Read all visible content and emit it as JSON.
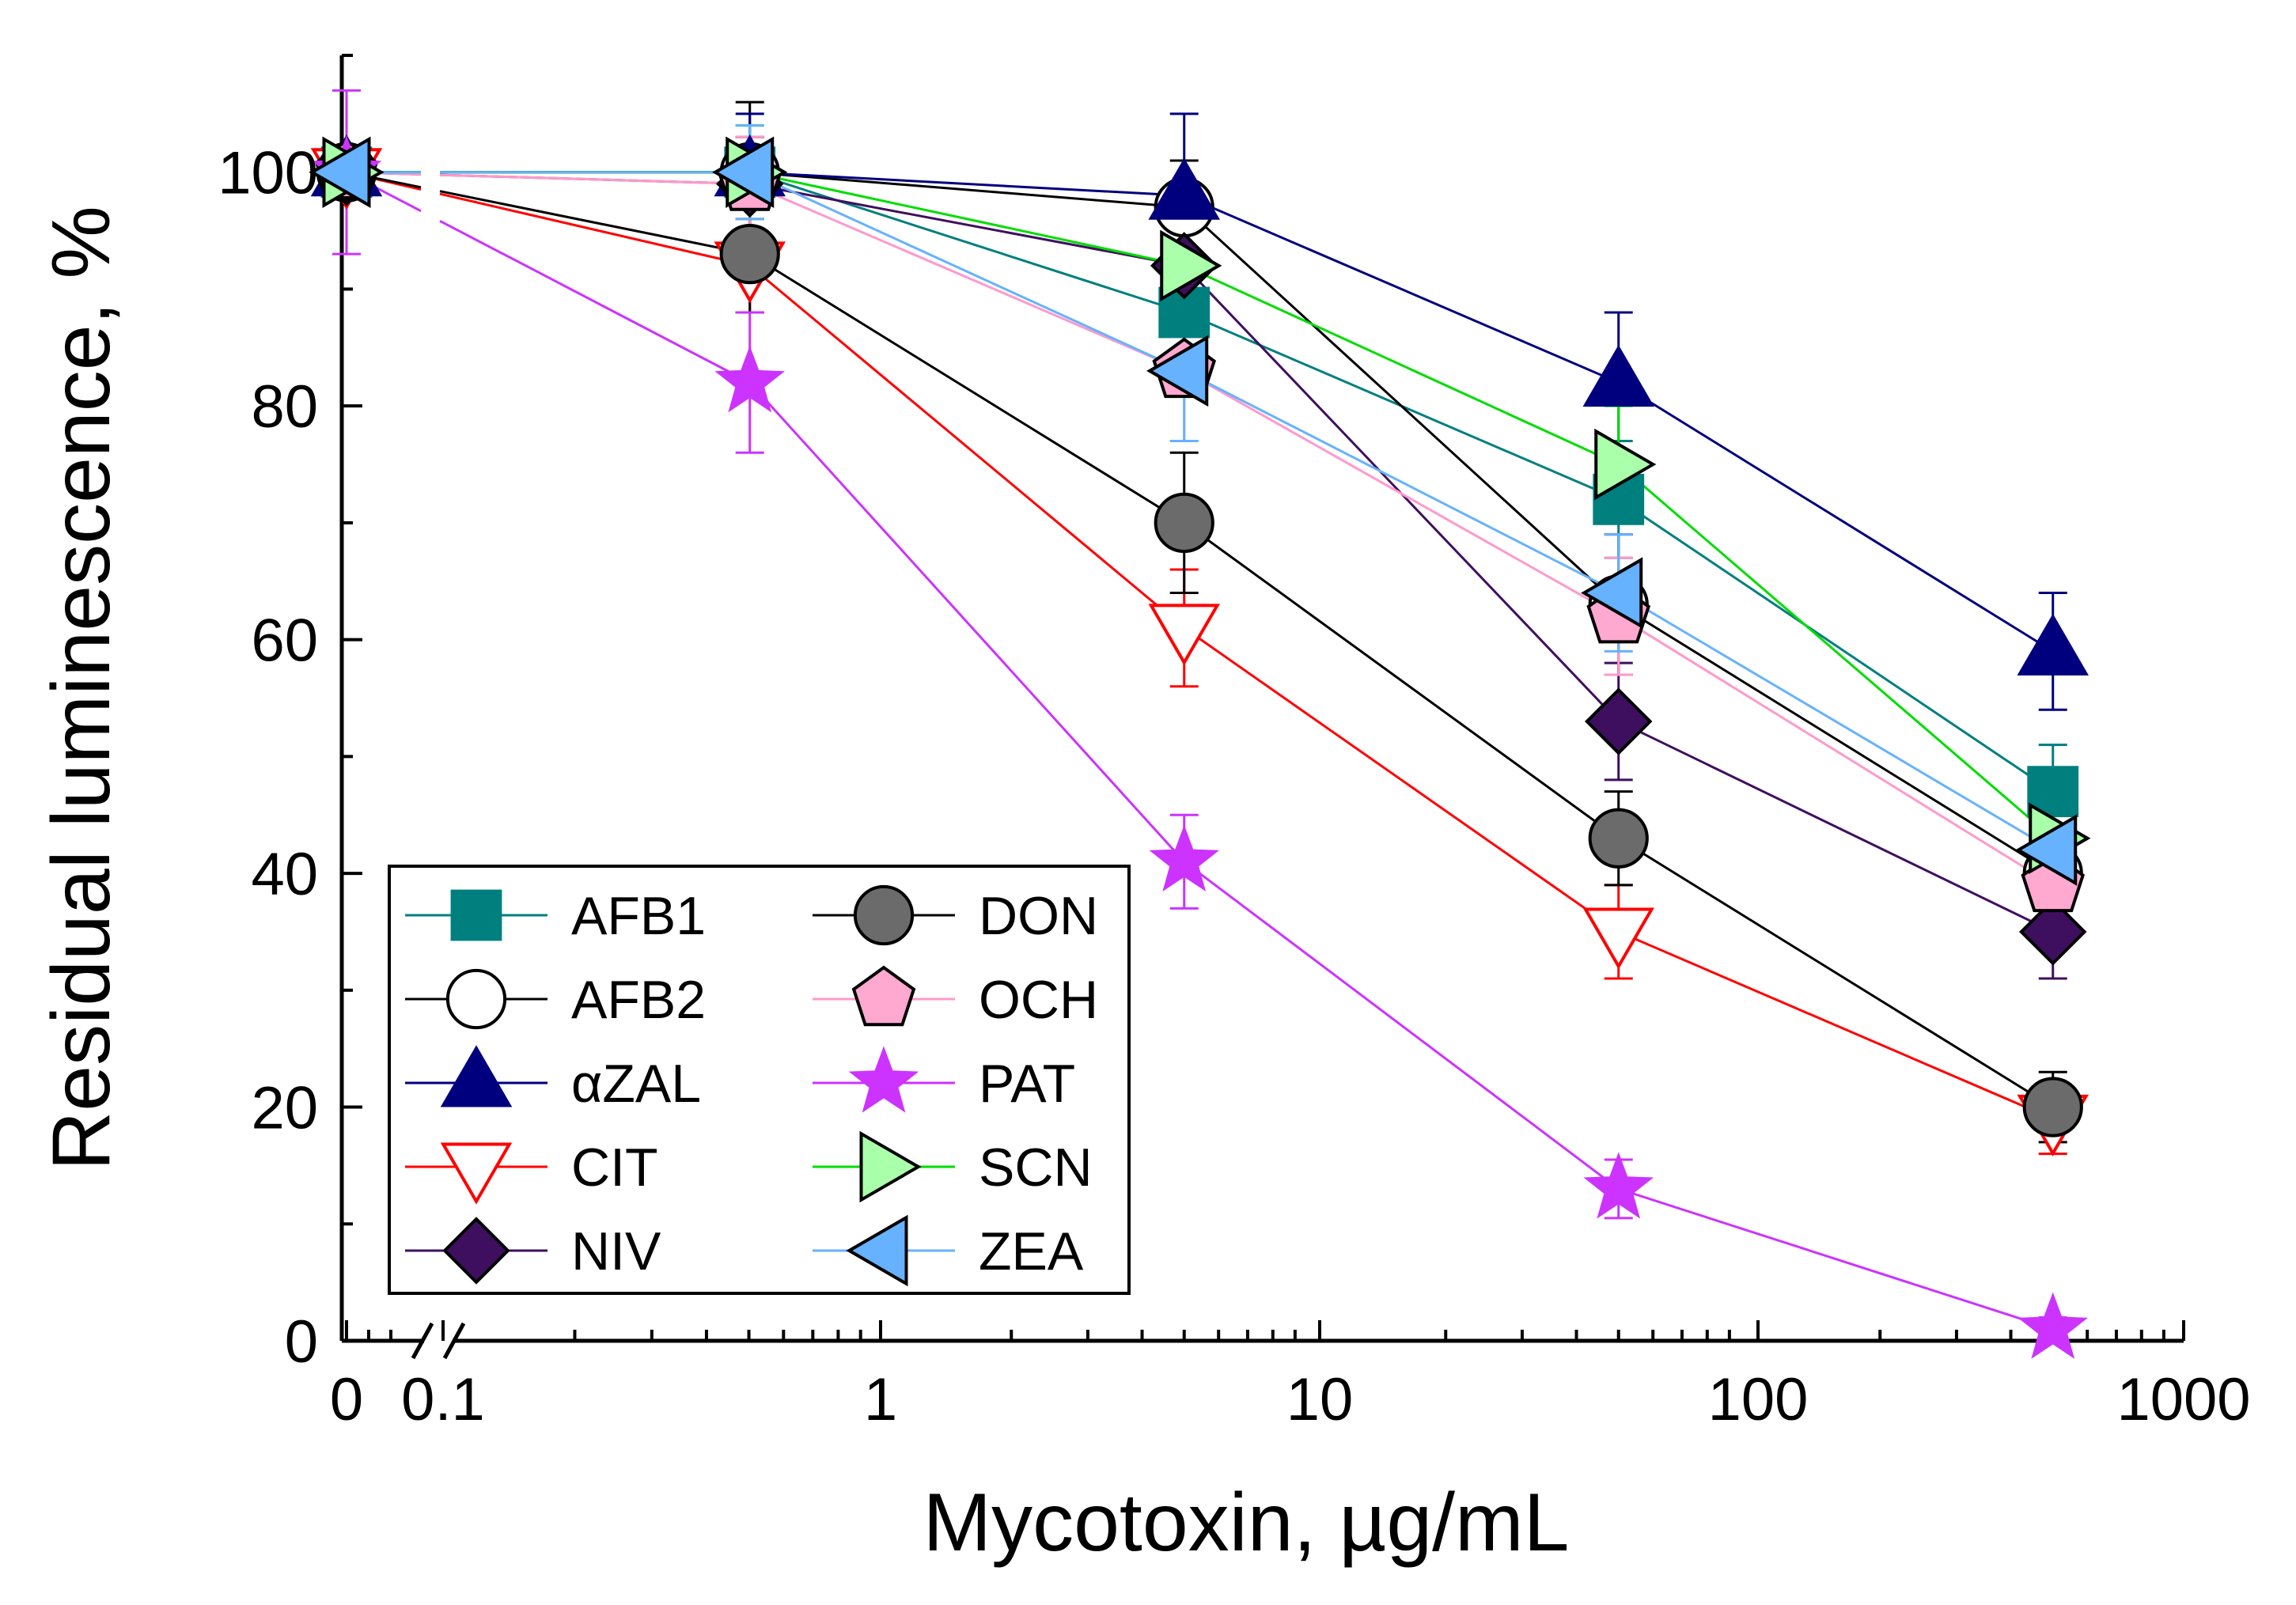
{
  "chart_data": {
    "type": "line",
    "xlabel": "Mycotoxin, µg/mL",
    "ylabel": "Residual luminescence, %",
    "x_scale": "log with axis break",
    "x_ticks": [
      "0",
      "0.1",
      "1",
      "10",
      "100",
      "1000"
    ],
    "y_ticks": [
      "0",
      "20",
      "40",
      "60",
      "80",
      "100"
    ],
    "ylim": [
      0,
      110
    ],
    "xlim": [
      0.1,
      1000
    ],
    "legend_position": "bottom-left",
    "x": [
      0,
      0.5,
      5,
      50,
      500
    ],
    "series": [
      {
        "name": "AFB1",
        "color": "#007F7F",
        "marker": "square",
        "fill": "#007F7F",
        "values": [
          100,
          100,
          88,
          72,
          47
        ],
        "errors": [
          0,
          3,
          5,
          5,
          4
        ]
      },
      {
        "name": "AFB2",
        "color": "#000000",
        "marker": "circle",
        "fill": "#FFFFFF",
        "values": [
          100,
          100,
          97,
          63,
          40
        ],
        "errors": [
          0,
          6,
          4,
          6,
          6
        ]
      },
      {
        "name": "αZAL",
        "color": "#00007F",
        "marker": "triangle-up",
        "fill": "#00007F",
        "values": [
          100,
          100,
          98,
          82,
          59
        ],
        "errors": [
          0,
          5,
          7,
          6,
          5
        ]
      },
      {
        "name": "CIT",
        "color": "#FF0000",
        "marker": "triangle-down",
        "fill": "#FFFFFF",
        "values": [
          100,
          92,
          61,
          35,
          19
        ],
        "errors": [
          0,
          4,
          5,
          4,
          3
        ]
      },
      {
        "name": "NIV",
        "color": "#3F0F5F",
        "marker": "diamond",
        "fill": "#3F0F5F",
        "values": [
          100,
          99,
          92,
          53,
          35
        ],
        "errors": [
          0,
          4,
          4,
          5,
          4
        ]
      },
      {
        "name": "DON",
        "color": "#000000",
        "marker": "circle",
        "fill": "#6B6B6B",
        "values": [
          100,
          93,
          70,
          43,
          20
        ],
        "errors": [
          0,
          5,
          6,
          4,
          3
        ]
      },
      {
        "name": "OCH",
        "color": "#FF99CC",
        "marker": "pentagon",
        "fill": "#FFA8D0",
        "values": [
          100,
          99,
          83,
          62,
          39
        ],
        "errors": [
          0,
          4,
          6,
          5,
          5
        ]
      },
      {
        "name": "PAT",
        "color": "#CC33FF",
        "marker": "star",
        "fill": "#CC33FF",
        "values": [
          100,
          82,
          41,
          13,
          1
        ],
        "errors": [
          7,
          6,
          4,
          2.5,
          1
        ]
      },
      {
        "name": "SCN",
        "color": "#00DD00",
        "marker": "triangle-right",
        "fill": "#AAFFAA",
        "values": [
          100,
          100,
          92,
          75,
          43
        ],
        "errors": [
          0,
          4,
          4,
          5,
          4
        ]
      },
      {
        "name": "ZEA",
        "color": "#66B2FF",
        "marker": "triangle-left",
        "fill": "#66B2FF",
        "values": [
          100,
          100,
          83,
          64,
          42
        ],
        "errors": [
          0,
          4,
          6,
          5,
          5
        ]
      }
    ],
    "legend_order": [
      0,
      5,
      1,
      6,
      2,
      7,
      3,
      8,
      4,
      9
    ]
  }
}
